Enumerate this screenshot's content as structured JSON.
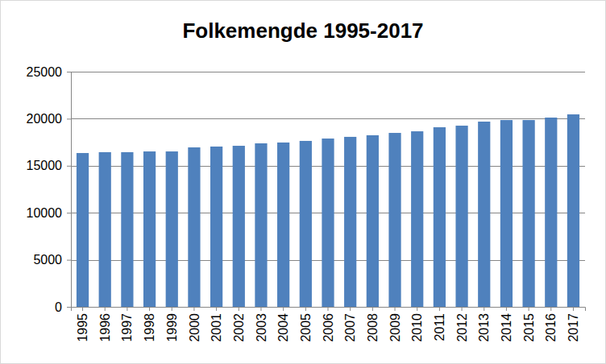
{
  "chart_data": {
    "type": "bar",
    "title": "Folkemengde 1995-2017",
    "categories": [
      "1995",
      "1996",
      "1997",
      "1998",
      "1999",
      "2000",
      "2001",
      "2002",
      "2003",
      "2004",
      "2005",
      "2006",
      "2007",
      "2008",
      "2009",
      "2010",
      "2011",
      "2012",
      "2013",
      "2014",
      "2015",
      "2016",
      "2017"
    ],
    "values": [
      16350,
      16440,
      16440,
      16520,
      16520,
      16950,
      17040,
      17120,
      17380,
      17470,
      17640,
      17890,
      18070,
      18240,
      18490,
      18660,
      19090,
      19260,
      19690,
      19860,
      19860,
      20120,
      20460
    ],
    "color": "#4f81bd",
    "ylim": [
      0,
      25000
    ],
    "yticks": [
      0,
      5000,
      10000,
      15000,
      20000,
      25000
    ],
    "grid": true
  }
}
